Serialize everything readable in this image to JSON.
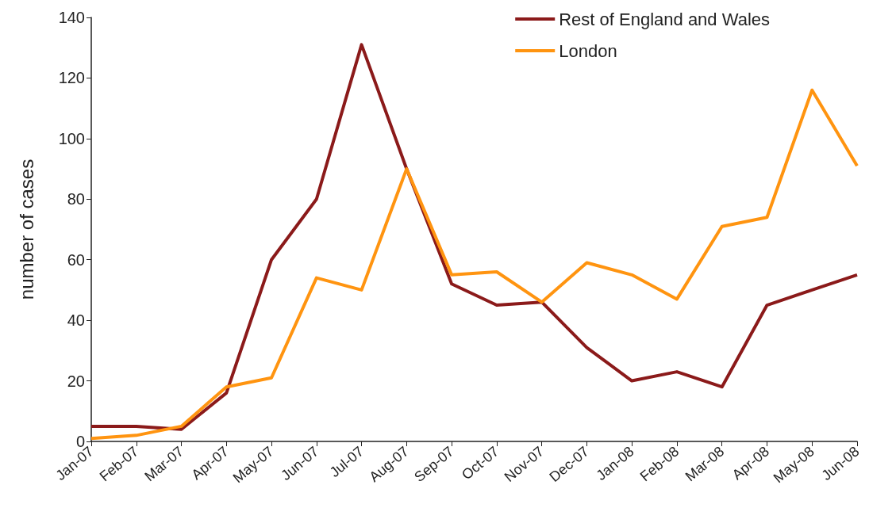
{
  "chart_data": {
    "type": "line",
    "ylabel": "number of cases",
    "categories": [
      "Jan-07",
      "Feb-07",
      "Mar-07",
      "Apr-07",
      "May-07",
      "Jun-07",
      "Jul-07",
      "Aug-07",
      "Sep-07",
      "Oct-07",
      "Nov-07",
      "Dec-07",
      "Jan-08",
      "Feb-08",
      "Mar-08",
      "Apr-08",
      "May-08",
      "Jun-08"
    ],
    "series": [
      {
        "name": "Rest of England and Wales",
        "color": "#8b1a1a",
        "values": [
          5,
          5,
          4,
          16,
          60,
          80,
          131,
          90,
          52,
          45,
          46,
          31,
          20,
          23,
          18,
          45,
          50,
          55
        ]
      },
      {
        "name": "London",
        "color": "#ff9410",
        "values": [
          1,
          2,
          5,
          18,
          21,
          54,
          50,
          90,
          55,
          56,
          46,
          59,
          55,
          47,
          71,
          74,
          116,
          91
        ]
      }
    ],
    "ylim": [
      0,
      140
    ],
    "yticks": [
      0,
      20,
      40,
      60,
      80,
      100,
      120,
      140
    ],
    "grid": false,
    "legend": "top right",
    "marker": "none",
    "line_style": "solid"
  }
}
